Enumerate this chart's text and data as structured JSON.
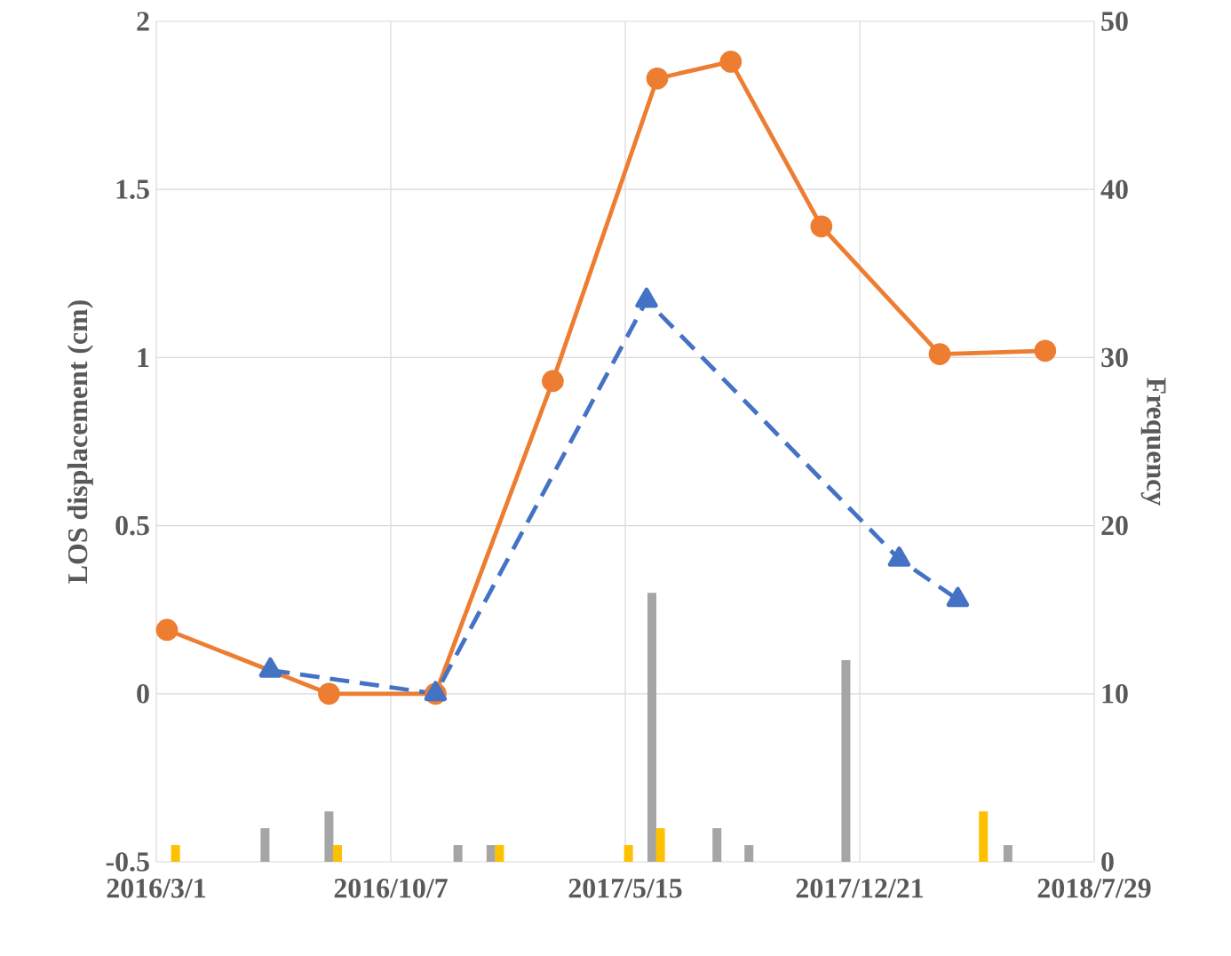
{
  "chart_data": {
    "type": "line",
    "ylabel": "LOS displacement (cm)",
    "y2label": "Frequency",
    "xlim": [
      "2016-03-01",
      "2018-07-29"
    ],
    "xticks": [
      {
        "value": "2016-03-01",
        "label": "2016/3/1"
      },
      {
        "value": "2016-10-07",
        "label": "2016/10/7"
      },
      {
        "value": "2017-05-15",
        "label": "2017/5/15"
      },
      {
        "value": "2017-12-21",
        "label": "2017/12/21"
      },
      {
        "value": "2018-07-29",
        "label": "2018/7/29"
      }
    ],
    "ylim": [
      -0.5,
      2
    ],
    "yticks": [
      -0.5,
      0,
      0.5,
      1,
      1.5,
      2
    ],
    "y2lim": [
      0,
      50
    ],
    "y2ticks": [
      0,
      10,
      20,
      30,
      40,
      50
    ],
    "grid": true,
    "series": [
      {
        "type": "bar",
        "axis": "y2",
        "color": "#a5a5a5",
        "x": [
          "2016-06-11",
          "2016-08-10",
          "2016-12-09",
          "2017-01-09",
          "2017-06-09",
          "2017-08-09",
          "2017-09-08",
          "2017-12-08",
          "2018-05-09"
        ],
        "values": [
          2,
          3,
          1,
          1,
          16,
          2,
          1,
          12,
          1
        ]
      },
      {
        "type": "bar",
        "axis": "y2",
        "color": "#ffc000",
        "x": [
          "2016-03-19",
          "2016-08-18",
          "2017-01-17",
          "2017-05-18",
          "2017-06-17",
          "2018-04-16"
        ],
        "values": [
          1,
          1,
          1,
          1,
          2,
          3
        ]
      },
      {
        "color": "#ed7d31",
        "marker": "circle",
        "line_style": "solid",
        "x": [
          "2016-03-11",
          "2016-08-10",
          "2016-11-18",
          "2017-03-08",
          "2017-06-14",
          "2017-08-22",
          "2017-11-15",
          "2018-03-06",
          "2018-06-13"
        ],
        "values": [
          0.19,
          0,
          0,
          0.93,
          1.83,
          1.88,
          1.39,
          1.01,
          1.02
        ]
      },
      {
        "color": "#4472c4",
        "marker": "triangle",
        "line_style": "dashed",
        "x": [
          "2016-06-16",
          "2016-11-18",
          "2017-06-04",
          "2018-01-27",
          "2018-03-23"
        ],
        "values": [
          0.07,
          0,
          1.17,
          0.4,
          0.28
        ]
      }
    ]
  }
}
